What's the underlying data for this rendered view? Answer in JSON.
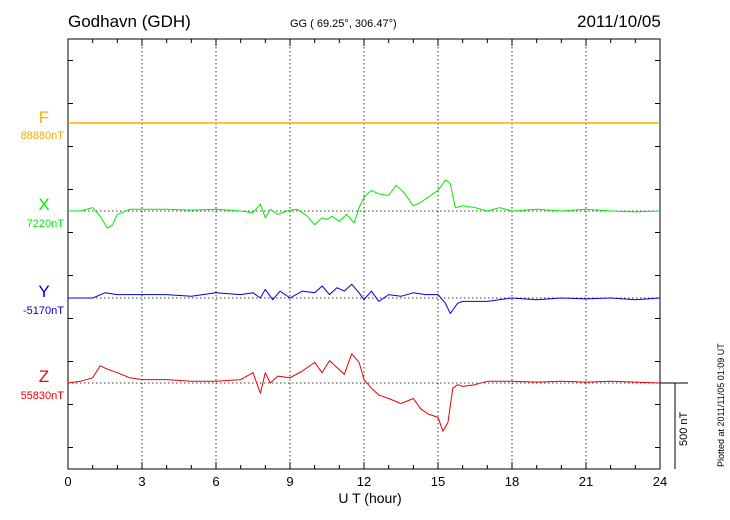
{
  "header": {
    "station": "Godhavn (GDH)",
    "coords": "GG ( 69.25°, 306.47°)",
    "date": "2011/10/05"
  },
  "side": {
    "plotted": "Plotted at 2011/11/05 01:09 UT",
    "scale": "500 nT"
  },
  "colors": {
    "F": "#ffaa00",
    "X": "#00ee00",
    "Y": "#0000dd",
    "Z": "#ee0000"
  },
  "chart_data": {
    "type": "line",
    "xlabel": "U T (hour)",
    "x_ticks": [
      "0",
      "3",
      "6",
      "9",
      "12",
      "15",
      "18",
      "21",
      "24"
    ],
    "xlim": [
      0,
      24
    ],
    "scale_bar_nT": 500,
    "grid": "dotted vertical every 3 hours",
    "series": [
      {
        "name": "F",
        "baseline_label": "88880nT",
        "x": [
          0,
          24
        ],
        "y": [
          0,
          0
        ]
      },
      {
        "name": "X",
        "baseline_label": "7220nT",
        "x": [
          0,
          0.5,
          1,
          1.3,
          1.6,
          1.8,
          2,
          2.5,
          3,
          4,
          5,
          6,
          7,
          7.5,
          7.8,
          8,
          8.2,
          8.5,
          9,
          9.3,
          9.7,
          10,
          10.3,
          10.5,
          10.7,
          11,
          11.3,
          11.6,
          11.8,
          12,
          12.3,
          12.6,
          13,
          13.3,
          13.6,
          14,
          14.3,
          14.6,
          15,
          15.3,
          15.5,
          15.7,
          16,
          16.5,
          17,
          17.5,
          18,
          19,
          20,
          21,
          22,
          23,
          24
        ],
        "y": [
          0,
          0,
          20,
          -30,
          -100,
          -80,
          -20,
          10,
          10,
          10,
          5,
          10,
          0,
          -10,
          40,
          -40,
          10,
          -20,
          5,
          10,
          -30,
          -80,
          -40,
          -50,
          -30,
          -60,
          -20,
          -70,
          20,
          80,
          120,
          100,
          90,
          150,
          110,
          30,
          50,
          80,
          120,
          180,
          160,
          20,
          30,
          20,
          0,
          20,
          0,
          10,
          0,
          10,
          0,
          -5,
          0
        ]
      },
      {
        "name": "Y",
        "baseline_label": "-5170nT",
        "x": [
          0,
          1,
          1.5,
          2,
          3,
          4,
          5,
          6,
          7,
          7.5,
          7.8,
          8,
          8.3,
          8.6,
          9,
          9.5,
          10,
          10.3,
          10.6,
          10.9,
          11.2,
          11.5,
          11.8,
          12,
          12.3,
          12.6,
          13,
          13.5,
          14,
          14.5,
          15,
          15.3,
          15.5,
          15.8,
          16,
          17,
          18,
          19,
          20,
          21,
          22,
          23,
          24
        ],
        "y": [
          0,
          0,
          30,
          20,
          20,
          20,
          10,
          30,
          20,
          30,
          0,
          50,
          -10,
          40,
          0,
          40,
          30,
          70,
          20,
          60,
          40,
          80,
          30,
          -10,
          40,
          -20,
          20,
          10,
          30,
          20,
          20,
          -30,
          -90,
          -30,
          -20,
          -20,
          0,
          -10,
          0,
          -5,
          0,
          -10,
          0
        ]
      },
      {
        "name": "Z",
        "baseline_label": "55830nT",
        "x": [
          0,
          0.5,
          1,
          1.3,
          1.6,
          2,
          2.5,
          3,
          4,
          5,
          6,
          7,
          7.5,
          7.8,
          8,
          8.2,
          8.5,
          9,
          9.5,
          10,
          10.3,
          10.6,
          10.9,
          11.2,
          11.5,
          11.8,
          12,
          12.3,
          12.6,
          13,
          13.5,
          14,
          14.3,
          14.6,
          15,
          15.2,
          15.4,
          15.6,
          15.8,
          16,
          16.5,
          17,
          18,
          19,
          20,
          21,
          22,
          23,
          24
        ],
        "y": [
          0,
          10,
          30,
          100,
          80,
          60,
          30,
          20,
          20,
          10,
          10,
          20,
          60,
          -60,
          60,
          0,
          40,
          30,
          70,
          120,
          60,
          130,
          90,
          50,
          170,
          120,
          20,
          -30,
          -70,
          -90,
          -120,
          -90,
          -150,
          -180,
          -200,
          -280,
          -230,
          -30,
          -10,
          -20,
          -10,
          10,
          10,
          5,
          10,
          5,
          10,
          5,
          0
        ]
      }
    ]
  }
}
